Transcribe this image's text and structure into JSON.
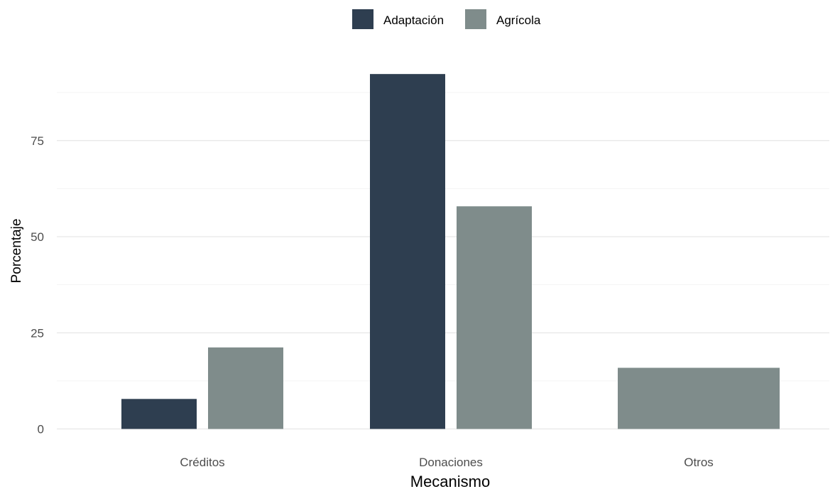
{
  "chart_data": {
    "type": "bar",
    "categories": [
      "Créditos",
      "Donaciones",
      "Otros"
    ],
    "series": [
      {
        "name": "Adaptación",
        "color": "#2e3e50",
        "values": [
          7.8,
          92.3,
          null
        ]
      },
      {
        "name": "Agrícola",
        "color": "#7f8c8b",
        "values": [
          21.2,
          57.9,
          15.9
        ]
      }
    ],
    "xlabel": "Mecanismo",
    "ylabel": "Porcentaje",
    "ylim": [
      0,
      95
    ],
    "yticks": [
      0,
      25,
      50,
      75
    ],
    "grid": true,
    "legend_position": "top"
  }
}
